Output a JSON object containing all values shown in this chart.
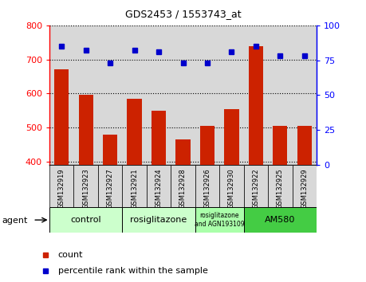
{
  "title": "GDS2453 / 1553743_at",
  "samples": [
    "GSM132919",
    "GSM132923",
    "GSM132927",
    "GSM132921",
    "GSM132924",
    "GSM132928",
    "GSM132926",
    "GSM132930",
    "GSM132922",
    "GSM132925",
    "GSM132929"
  ],
  "counts": [
    670,
    595,
    480,
    585,
    550,
    465,
    505,
    555,
    740,
    505,
    505
  ],
  "percentiles": [
    85,
    82,
    73,
    82,
    81,
    73,
    73,
    81,
    85,
    78,
    78
  ],
  "ylim_left": [
    390,
    800
  ],
  "ylim_right": [
    0,
    100
  ],
  "left_yticks": [
    400,
    500,
    600,
    700,
    800
  ],
  "right_yticks": [
    0,
    25,
    50,
    75,
    100
  ],
  "bar_color": "#cc2200",
  "dot_color": "#0000cc",
  "col_bg_color": "#d8d8d8",
  "group_defs": [
    {
      "label": "control",
      "indices": [
        0,
        1,
        2
      ],
      "color": "#ccffcc"
    },
    {
      "label": "rosiglitazone",
      "indices": [
        3,
        4,
        5
      ],
      "color": "#ccffcc"
    },
    {
      "label": "rosiglitazone\nand AGN193109",
      "indices": [
        6,
        7
      ],
      "color": "#aaffaa"
    },
    {
      "label": "AM580",
      "indices": [
        8,
        9,
        10
      ],
      "color": "#44cc44"
    }
  ],
  "legend_count_label": "count",
  "legend_pct_label": "percentile rank within the sample",
  "agent_label": "agent"
}
